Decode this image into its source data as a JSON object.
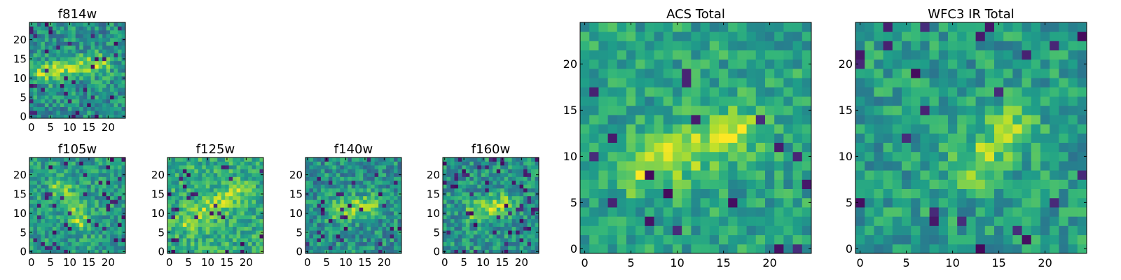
{
  "chart_data": [
    {
      "type": "heatmap",
      "title": "f814w",
      "x_ticks": [
        "0",
        "5",
        "10",
        "15",
        "20"
      ],
      "y_ticks": [
        "0",
        "5",
        "10",
        "15",
        "20"
      ],
      "xlim": [
        -0.5,
        24.5
      ],
      "ylim": [
        -0.5,
        24.5
      ],
      "grid": false,
      "colormap": "viridis",
      "pattern": {
        "seed": 11,
        "ridge": [
          0.24,
          0.5,
          0.64,
          0.56
        ],
        "ridge_strength": 0.32,
        "mean": 0.5,
        "noise": 0.2,
        "dark_fraction": 0.05
      }
    },
    {
      "type": "heatmap",
      "title": "f105w",
      "x_ticks": [
        "0",
        "5",
        "10",
        "15",
        "20"
      ],
      "y_ticks": [
        "0",
        "5",
        "10",
        "15",
        "20"
      ],
      "xlim": [
        -0.5,
        24.5
      ],
      "ylim": [
        -0.5,
        24.5
      ],
      "grid": false,
      "colormap": "viridis",
      "pattern": {
        "seed": 23,
        "ridge": [
          0.36,
          0.62,
          0.5,
          0.4
        ],
        "ridge_strength": 0.28,
        "mean": 0.55,
        "noise": 0.18,
        "dark_fraction": 0.06
      }
    },
    {
      "type": "heatmap",
      "title": "f125w",
      "x_ticks": [
        "0",
        "5",
        "10",
        "15",
        "20"
      ],
      "y_ticks": [
        "0",
        "5",
        "10",
        "15",
        "20"
      ],
      "xlim": [
        -0.5,
        24.5
      ],
      "ylim": [
        -0.5,
        24.5
      ],
      "grid": false,
      "colormap": "viridis",
      "pattern": {
        "seed": 37,
        "ridge": [
          0.3,
          0.4,
          0.62,
          0.58
        ],
        "ridge_strength": 0.22,
        "mean": 0.62,
        "noise": 0.18,
        "dark_fraction": 0.05
      }
    },
    {
      "type": "heatmap",
      "title": "f140w",
      "x_ticks": [
        "0",
        "5",
        "10",
        "15",
        "20"
      ],
      "y_ticks": [
        "0",
        "5",
        "10",
        "15",
        "20"
      ],
      "xlim": [
        -0.5,
        24.5
      ],
      "ylim": [
        -0.5,
        24.5
      ],
      "grid": false,
      "colormap": "viridis",
      "pattern": {
        "seed": 51,
        "ridge": [
          0.4,
          0.45,
          0.6,
          0.5
        ],
        "ridge_strength": 0.3,
        "mean": 0.5,
        "noise": 0.2,
        "dark_fraction": 0.07
      }
    },
    {
      "type": "heatmap",
      "title": "f160w",
      "x_ticks": [
        "0",
        "5",
        "10",
        "15",
        "20"
      ],
      "y_ticks": [
        "0",
        "5",
        "10",
        "15",
        "20"
      ],
      "xlim": [
        -0.5,
        24.5
      ],
      "ylim": [
        -0.5,
        24.5
      ],
      "grid": false,
      "colormap": "viridis",
      "pattern": {
        "seed": 67,
        "ridge": [
          0.4,
          0.45,
          0.58,
          0.5
        ],
        "ridge_strength": 0.3,
        "mean": 0.52,
        "noise": 0.19,
        "dark_fraction": 0.07
      }
    },
    {
      "type": "heatmap",
      "title": "ACS Total",
      "x_ticks": [
        "0",
        "5",
        "10",
        "15",
        "20"
      ],
      "y_ticks": [
        "0",
        "5",
        "10",
        "15",
        "20"
      ],
      "xlim": [
        -0.5,
        24.5
      ],
      "ylim": [
        -0.5,
        24.5
      ],
      "grid": false,
      "colormap": "viridis",
      "pattern": {
        "seed": 83,
        "ridge": [
          0.34,
          0.4,
          0.6,
          0.5
        ],
        "ridge_strength": 0.3,
        "mean": 0.58,
        "noise": 0.16,
        "dark_fraction": 0.03
      }
    },
    {
      "type": "heatmap",
      "title": "WFC3 IR Total",
      "x_ticks": [
        "0",
        "5",
        "10",
        "15",
        "20"
      ],
      "y_ticks": [
        "0",
        "5",
        "10",
        "15",
        "20"
      ],
      "xlim": [
        -0.5,
        24.5
      ],
      "ylim": [
        -0.5,
        24.5
      ],
      "grid": false,
      "colormap": "viridis",
      "pattern": {
        "seed": 97,
        "ridge": [
          0.55,
          0.42,
          0.65,
          0.52
        ],
        "ridge_strength": 0.26,
        "mean": 0.55,
        "noise": 0.17,
        "dark_fraction": 0.04
      }
    }
  ]
}
